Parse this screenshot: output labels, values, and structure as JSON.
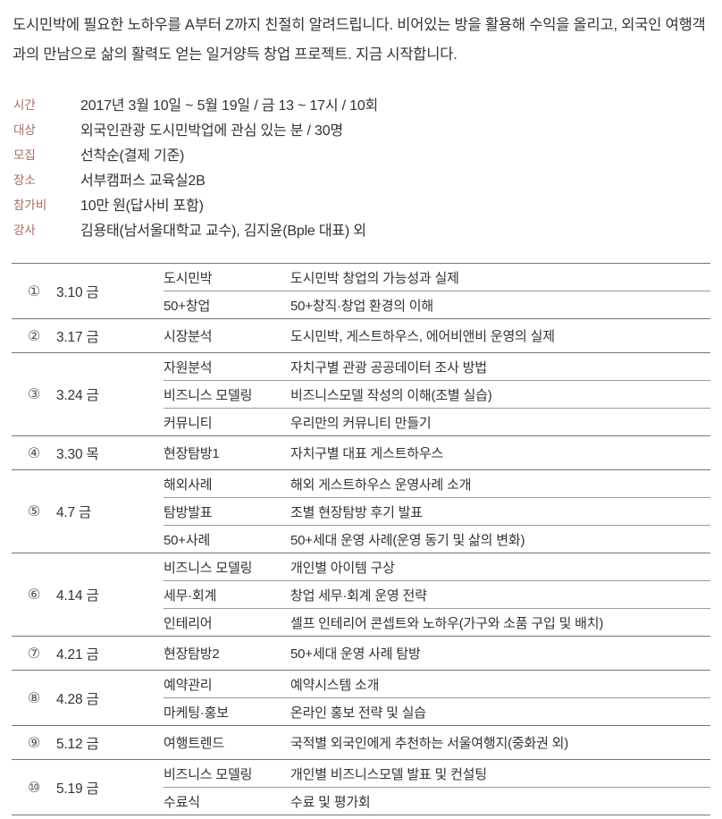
{
  "intro": {
    "text": "도시민박에 필요한 노하우를 A부터 Z까지 친절히 알려드립니다. 비어있는 방을 활용해 수익을 올리고, 외국인 여행객과의 만남으로 삶의 활력도 얻는 일거양득 창업 프로젝트. 지금 시작합니다."
  },
  "info": {
    "items": [
      {
        "label": "시간",
        "value": "2017년 3월 10일 ~ 5월 19일 / 금 13 ~ 17시 / 10회"
      },
      {
        "label": "대상",
        "value": "외국인관광 도시민박업에 관심 있는 분 / 30명"
      },
      {
        "label": "모집",
        "value": "선착순(결제 기준)"
      },
      {
        "label": "장소",
        "value": "서부캠퍼스 교육실2B"
      },
      {
        "label": "참가비",
        "value": "10만 원(답사비 포함)"
      },
      {
        "label": "강사",
        "value": "김용태(남서울대학교 교수), 김지윤(Bple 대표) 외"
      }
    ]
  },
  "schedule": {
    "rows": [
      {
        "no": "①",
        "date": "3.10 금",
        "sessions": [
          {
            "subject": "도시민박",
            "description": "도시민박 창업의 가능성과 실제"
          },
          {
            "subject": "50+창업",
            "description": "50+창직·창업 환경의 이해"
          }
        ]
      },
      {
        "no": "②",
        "date": "3.17 금",
        "sessions": [
          {
            "subject": "시장분석",
            "description": "도시민박, 게스트하우스, 에어비앤비 운영의 실제"
          }
        ]
      },
      {
        "no": "③",
        "date": "3.24 금",
        "sessions": [
          {
            "subject": "자원분석",
            "description": "자치구별 관광 공공데이터 조사 방법"
          },
          {
            "subject": "비즈니스 모델링",
            "description": "비즈니스모델 작성의 이해(조별 실습)"
          },
          {
            "subject": "커뮤니티",
            "description": "우리만의 커뮤니티 만들기"
          }
        ]
      },
      {
        "no": "④",
        "date": "3.30 목",
        "sessions": [
          {
            "subject": "현장탐방1",
            "description": "자치구별 대표 게스트하우스"
          }
        ]
      },
      {
        "no": "⑤",
        "date": "4.7 금",
        "sessions": [
          {
            "subject": "해외사례",
            "description": "해외 게스트하우스 운영사례 소개"
          },
          {
            "subject": "탐방발표",
            "description": "조별 현장탐방 후기 발표"
          },
          {
            "subject": "50+사례",
            "description": "50+세대 운영 사례(운영 동기 및 삶의 변화)"
          }
        ]
      },
      {
        "no": "⑥",
        "date": "4.14 금",
        "sessions": [
          {
            "subject": "비즈니스 모델링",
            "description": "개인별 아이템 구상"
          },
          {
            "subject": "세무·회계",
            "description": "창업 세무·회계 운영 전략"
          },
          {
            "subject": "인테리어",
            "description": "셀프 인테리어 콘셉트와 노하우(가구와 소품 구입 및 배치)"
          }
        ]
      },
      {
        "no": "⑦",
        "date": "4.21 금",
        "sessions": [
          {
            "subject": "현장탐방2",
            "description": "50+세대 운영 사례 탐방"
          }
        ]
      },
      {
        "no": "⑧",
        "date": "4.28 금",
        "sessions": [
          {
            "subject": "예약관리",
            "description": "예약시스템 소개"
          },
          {
            "subject": "마케팅·홍보",
            "description": "온라인 홍보 전략 및 실습"
          }
        ]
      },
      {
        "no": "⑨",
        "date": "5.12 금",
        "sessions": [
          {
            "subject": "여행트렌드",
            "description": "국적별 외국인에게 추천하는 서울여행지(중화권 외)"
          }
        ]
      },
      {
        "no": "⑩",
        "date": "5.19 금",
        "sessions": [
          {
            "subject": "비즈니스 모델링",
            "description": "개인별 비즈니스모델 발표 및 컨설팅"
          },
          {
            "subject": "수료식",
            "description": "수료 및 평가회"
          }
        ]
      }
    ]
  },
  "colors": {
    "label_accent": "#a96a5c",
    "body_text": "#333333",
    "group_line": "#757575",
    "sub_line": "#9a9a9a"
  }
}
